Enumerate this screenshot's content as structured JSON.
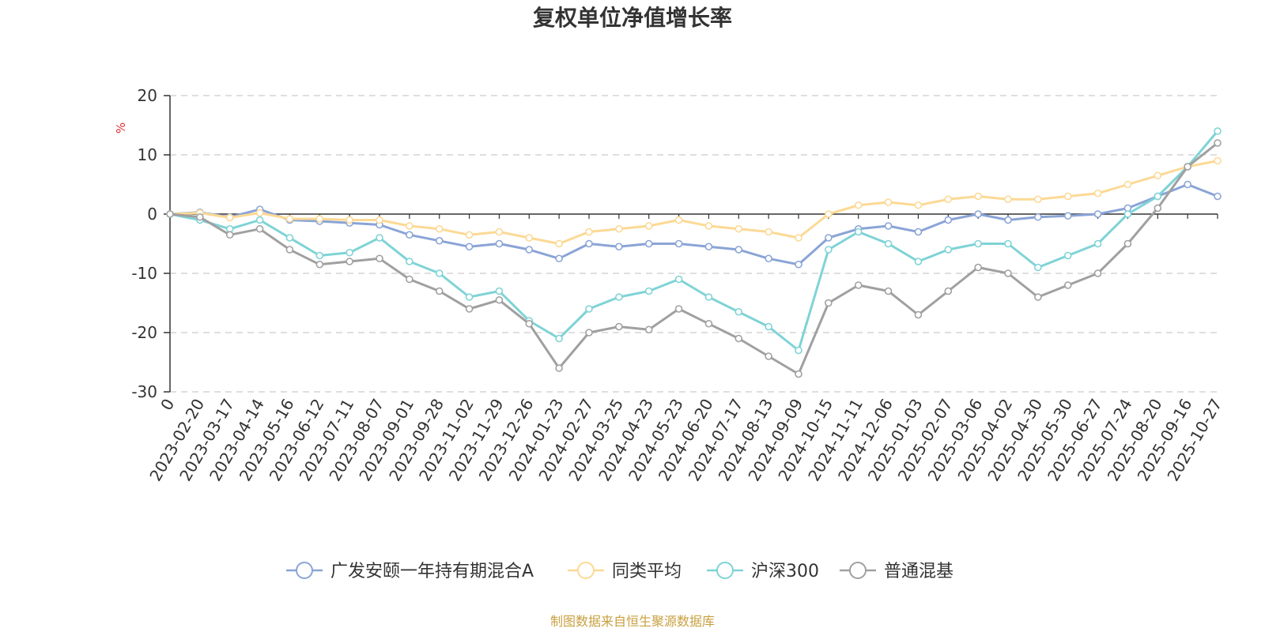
{
  "colors": {
    "fund": "#8aa4d6",
    "peer": "#fcd995",
    "index": "#7fd3d6",
    "mixed": "#a0a0a0",
    "unit": "#e03030",
    "source": "#c8a040",
    "grid": "#cccccc",
    "axis": "#333333"
  },
  "footer": {
    "source": "制图数据来自恒生聚源数据库"
  },
  "chart_data": {
    "type": "line",
    "title": "复权单位净值增长率",
    "ylabel": "%",
    "ylim": [
      -30,
      20
    ],
    "yticks": [
      "20",
      "10",
      "0",
      "-10",
      "-20",
      "-30"
    ],
    "ytick_values": [
      20,
      10,
      0,
      -10,
      -20,
      -30
    ],
    "grid": true,
    "legend_position": "bottom-center",
    "categories": [
      "0",
      "2023-02-20",
      "2023-03-17",
      "2023-04-14",
      "2023-05-16",
      "2023-06-12",
      "2023-07-11",
      "2023-08-07",
      "2023-09-01",
      "2023-09-28",
      "2023-11-02",
      "2023-11-29",
      "2023-12-26",
      "2024-01-23",
      "2024-02-27",
      "2024-03-25",
      "2024-04-23",
      "2024-05-23",
      "2024-06-20",
      "2024-07-17",
      "2024-08-13",
      "2024-09-09",
      "2024-10-15",
      "2024-11-11",
      "2024-12-06",
      "2025-01-03",
      "2025-02-07",
      "2025-03-06",
      "2025-04-02",
      "2025-04-30",
      "2025-05-30",
      "2025-06-27",
      "2025-07-24",
      "2025-08-20",
      "2025-09-16",
      "2025-10-27"
    ],
    "series": [
      {
        "name": "广发安颐一年持有期混合A",
        "color_key": "fund",
        "values": [
          0,
          0.3,
          -0.5,
          0.8,
          -1.0,
          -1.2,
          -1.5,
          -1.8,
          -3.5,
          -4.5,
          -5.5,
          -5.0,
          -6.0,
          -7.5,
          -5.0,
          -5.5,
          -5.0,
          -5.0,
          -5.5,
          -6.0,
          -7.5,
          -8.5,
          -4.0,
          -2.5,
          -2.0,
          -3.0,
          -1.0,
          0.0,
          -1.0,
          -0.5,
          -0.3,
          0.0,
          1.0,
          3.0,
          5.0,
          3.0
        ]
      },
      {
        "name": "同类平均",
        "color_key": "peer",
        "values": [
          0,
          0.2,
          -0.6,
          0.2,
          -0.8,
          -0.8,
          -1.0,
          -1.0,
          -2.0,
          -2.5,
          -3.5,
          -3.0,
          -4.0,
          -5.0,
          -3.0,
          -2.5,
          -2.0,
          -1.0,
          -2.0,
          -2.5,
          -3.0,
          -4.0,
          0.0,
          1.5,
          2.0,
          1.5,
          2.5,
          3.0,
          2.5,
          2.5,
          3.0,
          3.5,
          5.0,
          6.5,
          8.0,
          9.0
        ]
      },
      {
        "name": "沪深300",
        "color_key": "index",
        "values": [
          0,
          -1.0,
          -2.5,
          -1.0,
          -4.0,
          -7.0,
          -6.5,
          -4.0,
          -8.0,
          -10.0,
          -14.0,
          -13.0,
          -18.0,
          -21.0,
          -16.0,
          -14.0,
          -13.0,
          -11.0,
          -14.0,
          -16.5,
          -19.0,
          -23.0,
          -6.0,
          -3.0,
          -5.0,
          -8.0,
          -6.0,
          -5.0,
          -5.0,
          -9.0,
          -7.0,
          -5.0,
          0.0,
          3.0,
          8.0,
          14.0
        ]
      },
      {
        "name": "普通混基",
        "color_key": "mixed",
        "values": [
          0,
          -0.5,
          -3.5,
          -2.5,
          -6.0,
          -8.5,
          -8.0,
          -7.5,
          -11.0,
          -13.0,
          -16.0,
          -14.5,
          -18.5,
          -26.0,
          -20.0,
          -19.0,
          -19.5,
          -16.0,
          -18.5,
          -21.0,
          -24.0,
          -27.0,
          -15.0,
          -12.0,
          -13.0,
          -17.0,
          -13.0,
          -9.0,
          -10.0,
          -14.0,
          -12.0,
          -10.0,
          -5.0,
          1.0,
          8.0,
          12.0
        ]
      }
    ]
  }
}
